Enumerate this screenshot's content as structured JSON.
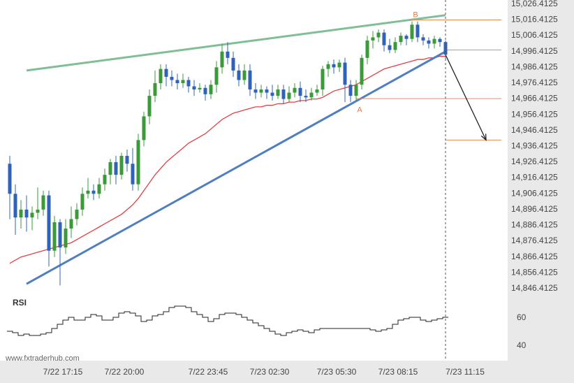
{
  "chart_data": {
    "type": "candlestick",
    "watermark": "www.fxtraderhub.com",
    "y_axis": {
      "ticks": [
        "15,026.4125",
        "15,016.4125",
        "15,006.4125",
        "14,996.4125",
        "14,986.4125",
        "14,976.4125",
        "14,966.4125",
        "14,956.4125",
        "14,946.4125",
        "14,936.4125",
        "14,926.4125",
        "14,916.4125",
        "14,906.4125",
        "14,896.4125",
        "14,886.4125",
        "14,876.4125",
        "14,866.4125",
        "14,856.4125",
        "14,846.4125"
      ],
      "ylim": [
        14842.4,
        15030.4
      ]
    },
    "x_axis": {
      "ticks": [
        {
          "label": "7/22 17:15",
          "index": 6
        },
        {
          "label": "7/22 20:00",
          "index": 17
        },
        {
          "label": "7/22 23:45",
          "index": 32
        },
        {
          "label": "7/23 02:30",
          "index": 43
        },
        {
          "label": "7/23 05:30",
          "index": 55
        },
        {
          "label": "7/23 08:15",
          "index": 66
        },
        {
          "label": "7/23 11:15",
          "index": 78
        }
      ]
    },
    "candles": [
      [
        14925,
        14906,
        14930,
        14890
      ],
      [
        14906,
        14891,
        14912,
        14880
      ],
      [
        14891,
        14896,
        14902,
        14884
      ],
      [
        14896,
        14891,
        14905,
        14882
      ],
      [
        14891,
        14894,
        14898,
        14883
      ],
      [
        14894,
        14896,
        14910,
        14890
      ],
      [
        14896,
        14905,
        14908,
        14892
      ],
      [
        14905,
        14870,
        14908,
        14860
      ],
      [
        14870,
        14888,
        14892,
        14866
      ],
      [
        14888,
        14872,
        14890,
        14848
      ],
      [
        14872,
        14884,
        14890,
        14868
      ],
      [
        14884,
        14890,
        14898,
        14878
      ],
      [
        14890,
        14896,
        14900,
        14886
      ],
      [
        14896,
        14906,
        14910,
        14892
      ],
      [
        14906,
        14908,
        14916,
        14903
      ],
      [
        14908,
        14906,
        14912,
        14902
      ],
      [
        14906,
        14912,
        14916,
        14903
      ],
      [
        14912,
        14918,
        14922,
        14908
      ],
      [
        14918,
        14926,
        14928,
        14912
      ],
      [
        14926,
        14918,
        14930,
        14912
      ],
      [
        14918,
        14930,
        14932,
        14915
      ],
      [
        14930,
        14925,
        14934,
        14920
      ],
      [
        14925,
        14912,
        14935,
        14908
      ],
      [
        14912,
        14940,
        14944,
        14908
      ],
      [
        14940,
        14955,
        14958,
        14936
      ],
      [
        14955,
        14968,
        14972,
        14950
      ],
      [
        14968,
        14976,
        14984,
        14964
      ],
      [
        14976,
        14985,
        14988,
        14972
      ],
      [
        14985,
        14980,
        14988,
        14974
      ],
      [
        14980,
        14978,
        14984,
        14974
      ],
      [
        14978,
        14976,
        14982,
        14972
      ],
      [
        14976,
        14978,
        14982,
        14973
      ],
      [
        14978,
        14974,
        14980,
        14970
      ],
      [
        14974,
        14972,
        14978,
        14968
      ],
      [
        14972,
        14973,
        14976,
        14970
      ],
      [
        14973,
        14969,
        14975,
        14965
      ],
      [
        14969,
        14975,
        14978,
        14966
      ],
      [
        14975,
        14986,
        14990,
        14970
      ],
      [
        14986,
        14996,
        15001,
        14982
      ],
      [
        14996,
        14992,
        15002,
        14988
      ],
      [
        14992,
        14984,
        14996,
        14980
      ],
      [
        14984,
        14978,
        14988,
        14974
      ],
      [
        14978,
        14984,
        14988,
        14975
      ],
      [
        14984,
        14972,
        14988,
        14968
      ],
      [
        14972,
        14970,
        14976,
        14966
      ],
      [
        14970,
        14972,
        14975,
        14967
      ],
      [
        14972,
        14970,
        14974,
        14966
      ],
      [
        14970,
        14968,
        14975,
        14965
      ],
      [
        14968,
        14972,
        14975,
        14966
      ],
      [
        14972,
        14966,
        14975,
        14963
      ],
      [
        14966,
        14970,
        14974,
        14964
      ],
      [
        14970,
        14973,
        14976,
        14967
      ],
      [
        14973,
        14968,
        14977,
        14964
      ],
      [
        14968,
        14967,
        14972,
        14964
      ],
      [
        14967,
        14970,
        14973,
        14965
      ],
      [
        14970,
        14972,
        14975,
        14968
      ],
      [
        14972,
        14985,
        14987,
        14968
      ],
      [
        14985,
        14988,
        14990,
        14980
      ],
      [
        14988,
        14986,
        14991,
        14982
      ],
      [
        14986,
        14989,
        14991,
        14983
      ],
      [
        14989,
        14975,
        14992,
        14964
      ],
      [
        14975,
        14968,
        14978,
        14964
      ],
      [
        14968,
        14975,
        14978,
        14965
      ],
      [
        14975,
        14992,
        14994,
        14972
      ],
      [
        14992,
        15003,
        15006,
        14988
      ],
      [
        15003,
        15005,
        15009,
        14998
      ],
      [
        15005,
        15008,
        15010,
        15002
      ],
      [
        15008,
        15000,
        15010,
        14996
      ],
      [
        15000,
        14997,
        15004,
        14995
      ],
      [
        14997,
        15002,
        15005,
        14995
      ],
      [
        15002,
        15006,
        15008,
        15000
      ],
      [
        15006,
        15004,
        15007,
        15000
      ],
      [
        15004,
        15013,
        15015,
        15002
      ],
      [
        15013,
        15005,
        15015,
        15002
      ],
      [
        15005,
        15003,
        15007,
        15000
      ],
      [
        15003,
        15001,
        15005,
        14998
      ],
      [
        15001,
        15004,
        15006,
        14998
      ],
      [
        15004,
        15002,
        15005,
        14999
      ],
      [
        15002,
        14994,
        15003,
        14991
      ]
    ],
    "moving_average": [
      14862,
      14864,
      14866,
      14867,
      14868,
      14869,
      14870,
      14871,
      14872,
      14873,
      14874,
      14875,
      14877,
      14879,
      14881,
      14883,
      14885,
      14887,
      14889,
      14891,
      14893,
      14896,
      14899,
      14903,
      14908,
      14913,
      14918,
      14922,
      14926,
      14929,
      14932,
      14935,
      14938,
      14940,
      14942,
      14944,
      14947,
      14950,
      14953,
      14955,
      14957,
      14958,
      14959,
      14960,
      14961,
      14961,
      14962,
      14962,
      14963,
      14963,
      14964,
      14964,
      14965,
      14965,
      14966,
      14966,
      14967,
      14969,
      14971,
      14972,
      14973,
      14974,
      14975,
      14977,
      14979,
      14981,
      14983,
      14985,
      14986,
      14987,
      14988,
      14989,
      14990,
      14991,
      14991,
      14992,
      14992,
      14993,
      14993
    ],
    "trendlines": [
      {
        "name": "resistance",
        "from": [
          3,
          14984
        ],
        "to": [
          78,
          15019
        ],
        "color": "#7fbf95"
      },
      {
        "name": "support",
        "from": [
          3,
          14849
        ],
        "to": [
          78,
          14996
        ],
        "color": "#4f7fbf"
      }
    ],
    "levels": [
      {
        "name": "B",
        "value": 15016.0,
        "from_index": 72,
        "color": "#f08a55"
      },
      {
        "name": "current",
        "value": 14997.0,
        "from_index": 78,
        "color": "#f08a55"
      },
      {
        "name": "A",
        "value": 14966.2,
        "from_index": 62,
        "color": "#f08a55"
      },
      {
        "name": "target",
        "value": 14940.0,
        "from_index": 78,
        "color": "#f08a55"
      }
    ],
    "point_labels": [
      {
        "text": "B",
        "index": 72,
        "value": 15019.5
      },
      {
        "text": "A",
        "index": 62,
        "value": 14959.5
      }
    ],
    "forecast_arrow": {
      "from": [
        78,
        14994
      ],
      "to": [
        81,
        14940
      ],
      "color": "#222222"
    },
    "rsi": {
      "label": "RSI",
      "ticks": [
        "60",
        "40"
      ],
      "ylim": [
        33,
        72
      ],
      "values": [
        50,
        49,
        47,
        48,
        47,
        47,
        48,
        49,
        52,
        55,
        58,
        60,
        58,
        58,
        60,
        62,
        61,
        58,
        58,
        60,
        63,
        64,
        63,
        61,
        57,
        58,
        61,
        62,
        64,
        67,
        68,
        68,
        67,
        64,
        62,
        60,
        57,
        59,
        62,
        63,
        63,
        62,
        60,
        58,
        56,
        54,
        52,
        50,
        48,
        47,
        49,
        50,
        51,
        50,
        49,
        51,
        52,
        52,
        52,
        52,
        52,
        52,
        52,
        52,
        52,
        51,
        50,
        51,
        52,
        55,
        58,
        59,
        60,
        60,
        58,
        57,
        58,
        59,
        60
      ]
    },
    "colors": {
      "up": "#3a9a3a",
      "down": "#2f62b8",
      "moving_average": "#e04040",
      "grid_axis_bg": "#e9e9ea",
      "cursor_line": "#555555"
    }
  }
}
